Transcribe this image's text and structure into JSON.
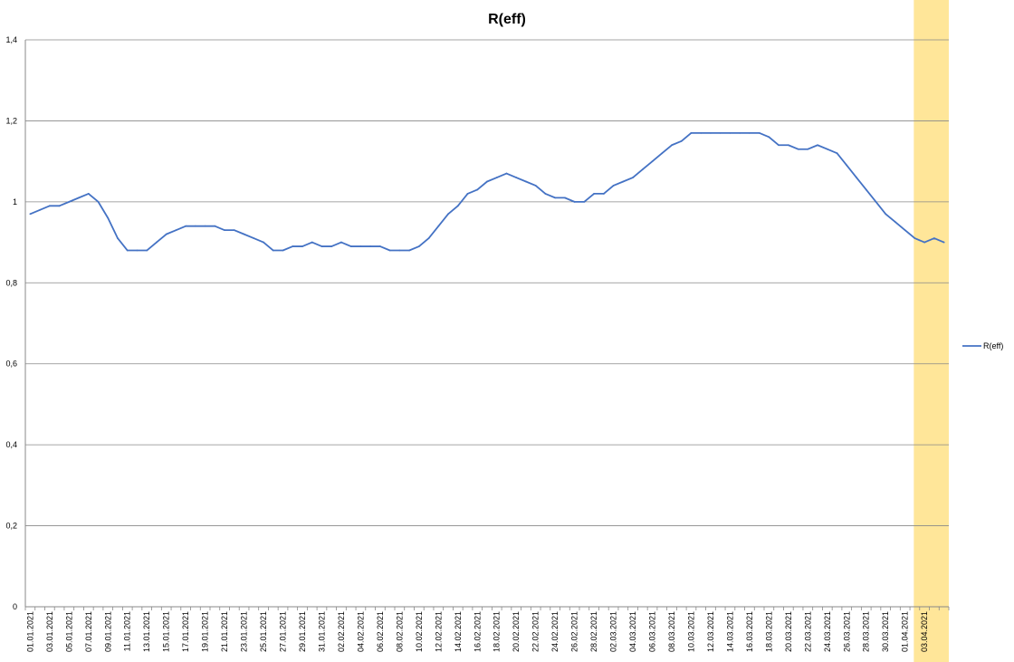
{
  "chart_data": {
    "type": "line",
    "title": "R(eff)",
    "xlabel": "",
    "ylabel": "",
    "ylim": [
      0,
      1.4
    ],
    "y_ticks": [
      "0",
      "0,2",
      "0,4",
      "0,6",
      "0,8",
      "1",
      "1,2",
      "1,4"
    ],
    "y_tick_values": [
      0,
      0.2,
      0.4,
      0.6,
      0.8,
      1.0,
      1.2,
      1.4
    ],
    "grid": true,
    "legend_position": "right",
    "colors": {
      "series": "#4472c4",
      "highlight": "#ffe699",
      "grid": "#888888"
    },
    "highlight_category": "03.04.2021",
    "x_tick_labels": [
      "01.01.2021",
      "03.01.2021",
      "05.01.2021",
      "07.01.2021",
      "09.01.2021",
      "11.01.2021",
      "13.01.2021",
      "15.01.2021",
      "17.01.2021",
      "19.01.2021",
      "21.01.2021",
      "23.01.2021",
      "25.01.2021",
      "27.01.2021",
      "29.01.2021",
      "31.01.2021",
      "02.02.2021",
      "04.02.2021",
      "06.02.2021",
      "08.02.2021",
      "10.02.2021",
      "12.02.2021",
      "14.02.2021",
      "16.02.2021",
      "18.02.2021",
      "20.02.2021",
      "22.02.2021",
      "24.02.2021",
      "26.02.2021",
      "28.02.2021",
      "02.03.2021",
      "04.03.2021",
      "06.03.2021",
      "08.03.2021",
      "10.03.2021",
      "12.03.2021",
      "14.03.2021",
      "16.03.2021",
      "18.03.2021",
      "20.03.2021",
      "22.03.2021",
      "24.03.2021",
      "26.03.2021",
      "28.03.2021",
      "30.03.2021",
      "01.04.2021",
      "03.04.2021"
    ],
    "x_start": "01.01.2021",
    "x_end": "04.04.2021",
    "series": [
      {
        "name": "R(eff)",
        "values": [
          0.97,
          0.98,
          0.99,
          0.99,
          1.0,
          1.01,
          1.02,
          1.0,
          0.96,
          0.91,
          0.88,
          0.88,
          0.88,
          0.9,
          0.92,
          0.93,
          0.94,
          0.94,
          0.94,
          0.94,
          0.93,
          0.93,
          0.92,
          0.91,
          0.9,
          0.88,
          0.88,
          0.89,
          0.89,
          0.9,
          0.89,
          0.89,
          0.9,
          0.89,
          0.89,
          0.89,
          0.89,
          0.88,
          0.88,
          0.88,
          0.89,
          0.91,
          0.94,
          0.97,
          0.99,
          1.02,
          1.03,
          1.05,
          1.06,
          1.07,
          1.06,
          1.05,
          1.04,
          1.02,
          1.01,
          1.01,
          1.0,
          1.0,
          1.02,
          1.02,
          1.04,
          1.05,
          1.06,
          1.08,
          1.1,
          1.12,
          1.14,
          1.15,
          1.17,
          1.17,
          1.17,
          1.17,
          1.17,
          1.17,
          1.17,
          1.17,
          1.16,
          1.14,
          1.14,
          1.13,
          1.13,
          1.14,
          1.13,
          1.12,
          1.09,
          1.06,
          1.03,
          1.0,
          0.97,
          0.95,
          0.93,
          0.91,
          0.9,
          0.91,
          0.9
        ]
      }
    ]
  }
}
